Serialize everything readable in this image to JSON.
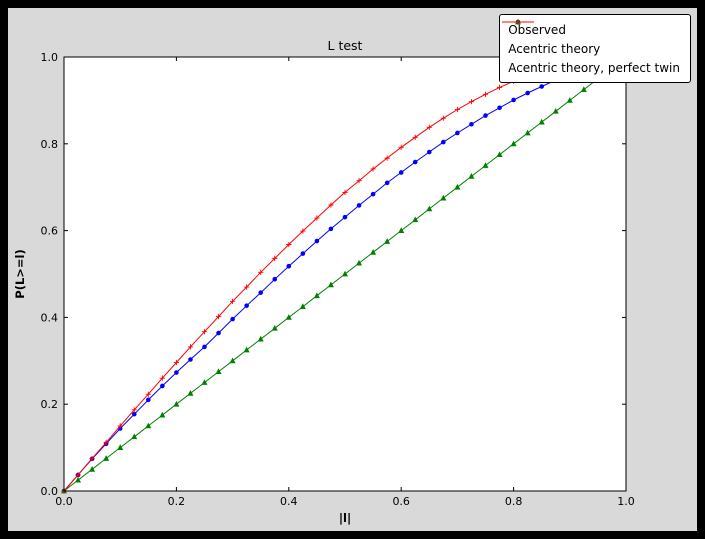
{
  "window": {
    "outer_background": "#000000",
    "figure_background": "#d9d9d9",
    "plot_background": "#ffffff"
  },
  "chart_data": {
    "type": "line",
    "title": "L test",
    "xlabel": "|l|",
    "ylabel": "P(L>=l)",
    "xlim": [
      0,
      1
    ],
    "ylim": [
      0,
      1
    ],
    "xticks": [
      0,
      0.2,
      0.4,
      0.6,
      0.8,
      1
    ],
    "yticks": [
      0,
      0.2,
      0.4,
      0.6,
      0.8,
      1
    ],
    "grid": false,
    "legend_position": "upper right",
    "series": [
      {
        "name": "Observed",
        "color": "#0000ff",
        "marker": "circle",
        "x": [
          0,
          0.025,
          0.05,
          0.075,
          0.1,
          0.125,
          0.15,
          0.175,
          0.2,
          0.225,
          0.25,
          0.275,
          0.3,
          0.325,
          0.35,
          0.375,
          0.4,
          0.425,
          0.45,
          0.475,
          0.5,
          0.525,
          0.55,
          0.575,
          0.6,
          0.625,
          0.65,
          0.675,
          0.7,
          0.725,
          0.75,
          0.775,
          0.8,
          0.825,
          0.85,
          0.875
        ],
        "y": [
          0,
          0.037,
          0.074,
          0.109,
          0.144,
          0.177,
          0.21,
          0.242,
          0.273,
          0.303,
          0.332,
          0.364,
          0.396,
          0.427,
          0.457,
          0.488,
          0.518,
          0.547,
          0.576,
          0.604,
          0.631,
          0.658,
          0.684,
          0.71,
          0.734,
          0.758,
          0.781,
          0.804,
          0.825,
          0.845,
          0.865,
          0.883,
          0.901,
          0.917,
          0.932,
          0.947
        ]
      },
      {
        "name": "Acentric theory",
        "color": "#008000",
        "marker": "triangle",
        "x": [
          0,
          0.025,
          0.05,
          0.075,
          0.1,
          0.125,
          0.15,
          0.175,
          0.2,
          0.225,
          0.25,
          0.275,
          0.3,
          0.325,
          0.35,
          0.375,
          0.4,
          0.425,
          0.45,
          0.475,
          0.5,
          0.525,
          0.55,
          0.575,
          0.6,
          0.625,
          0.65,
          0.675,
          0.7,
          0.725,
          0.75,
          0.775,
          0.8,
          0.825,
          0.85,
          0.875,
          0.9,
          0.925,
          0.95,
          0.975
        ],
        "y": [
          0,
          0.025,
          0.05,
          0.075,
          0.1,
          0.125,
          0.15,
          0.175,
          0.2,
          0.225,
          0.25,
          0.275,
          0.3,
          0.325,
          0.35,
          0.375,
          0.4,
          0.425,
          0.45,
          0.475,
          0.5,
          0.525,
          0.55,
          0.575,
          0.6,
          0.625,
          0.65,
          0.675,
          0.7,
          0.725,
          0.75,
          0.775,
          0.8,
          0.825,
          0.85,
          0.875,
          0.9,
          0.925,
          0.95,
          0.975
        ]
      },
      {
        "name": "Acentric theory, perfect twin",
        "color": "#ff0000",
        "marker": "plus",
        "x": [
          0,
          0.025,
          0.05,
          0.075,
          0.1,
          0.125,
          0.15,
          0.175,
          0.2,
          0.225,
          0.25,
          0.275,
          0.3,
          0.325,
          0.35,
          0.375,
          0.4,
          0.425,
          0.45,
          0.475,
          0.5,
          0.525,
          0.55,
          0.575,
          0.6,
          0.625,
          0.65,
          0.675,
          0.7,
          0.725,
          0.75,
          0.775,
          0.8,
          0.825,
          0.85,
          0.875
        ],
        "y": [
          0,
          0.037,
          0.075,
          0.112,
          0.15,
          0.187,
          0.223,
          0.26,
          0.296,
          0.332,
          0.367,
          0.402,
          0.437,
          0.47,
          0.504,
          0.536,
          0.568,
          0.599,
          0.629,
          0.659,
          0.688,
          0.715,
          0.742,
          0.767,
          0.792,
          0.815,
          0.838,
          0.859,
          0.879,
          0.897,
          0.914,
          0.93,
          0.944,
          0.957,
          0.968,
          0.978
        ]
      }
    ]
  }
}
